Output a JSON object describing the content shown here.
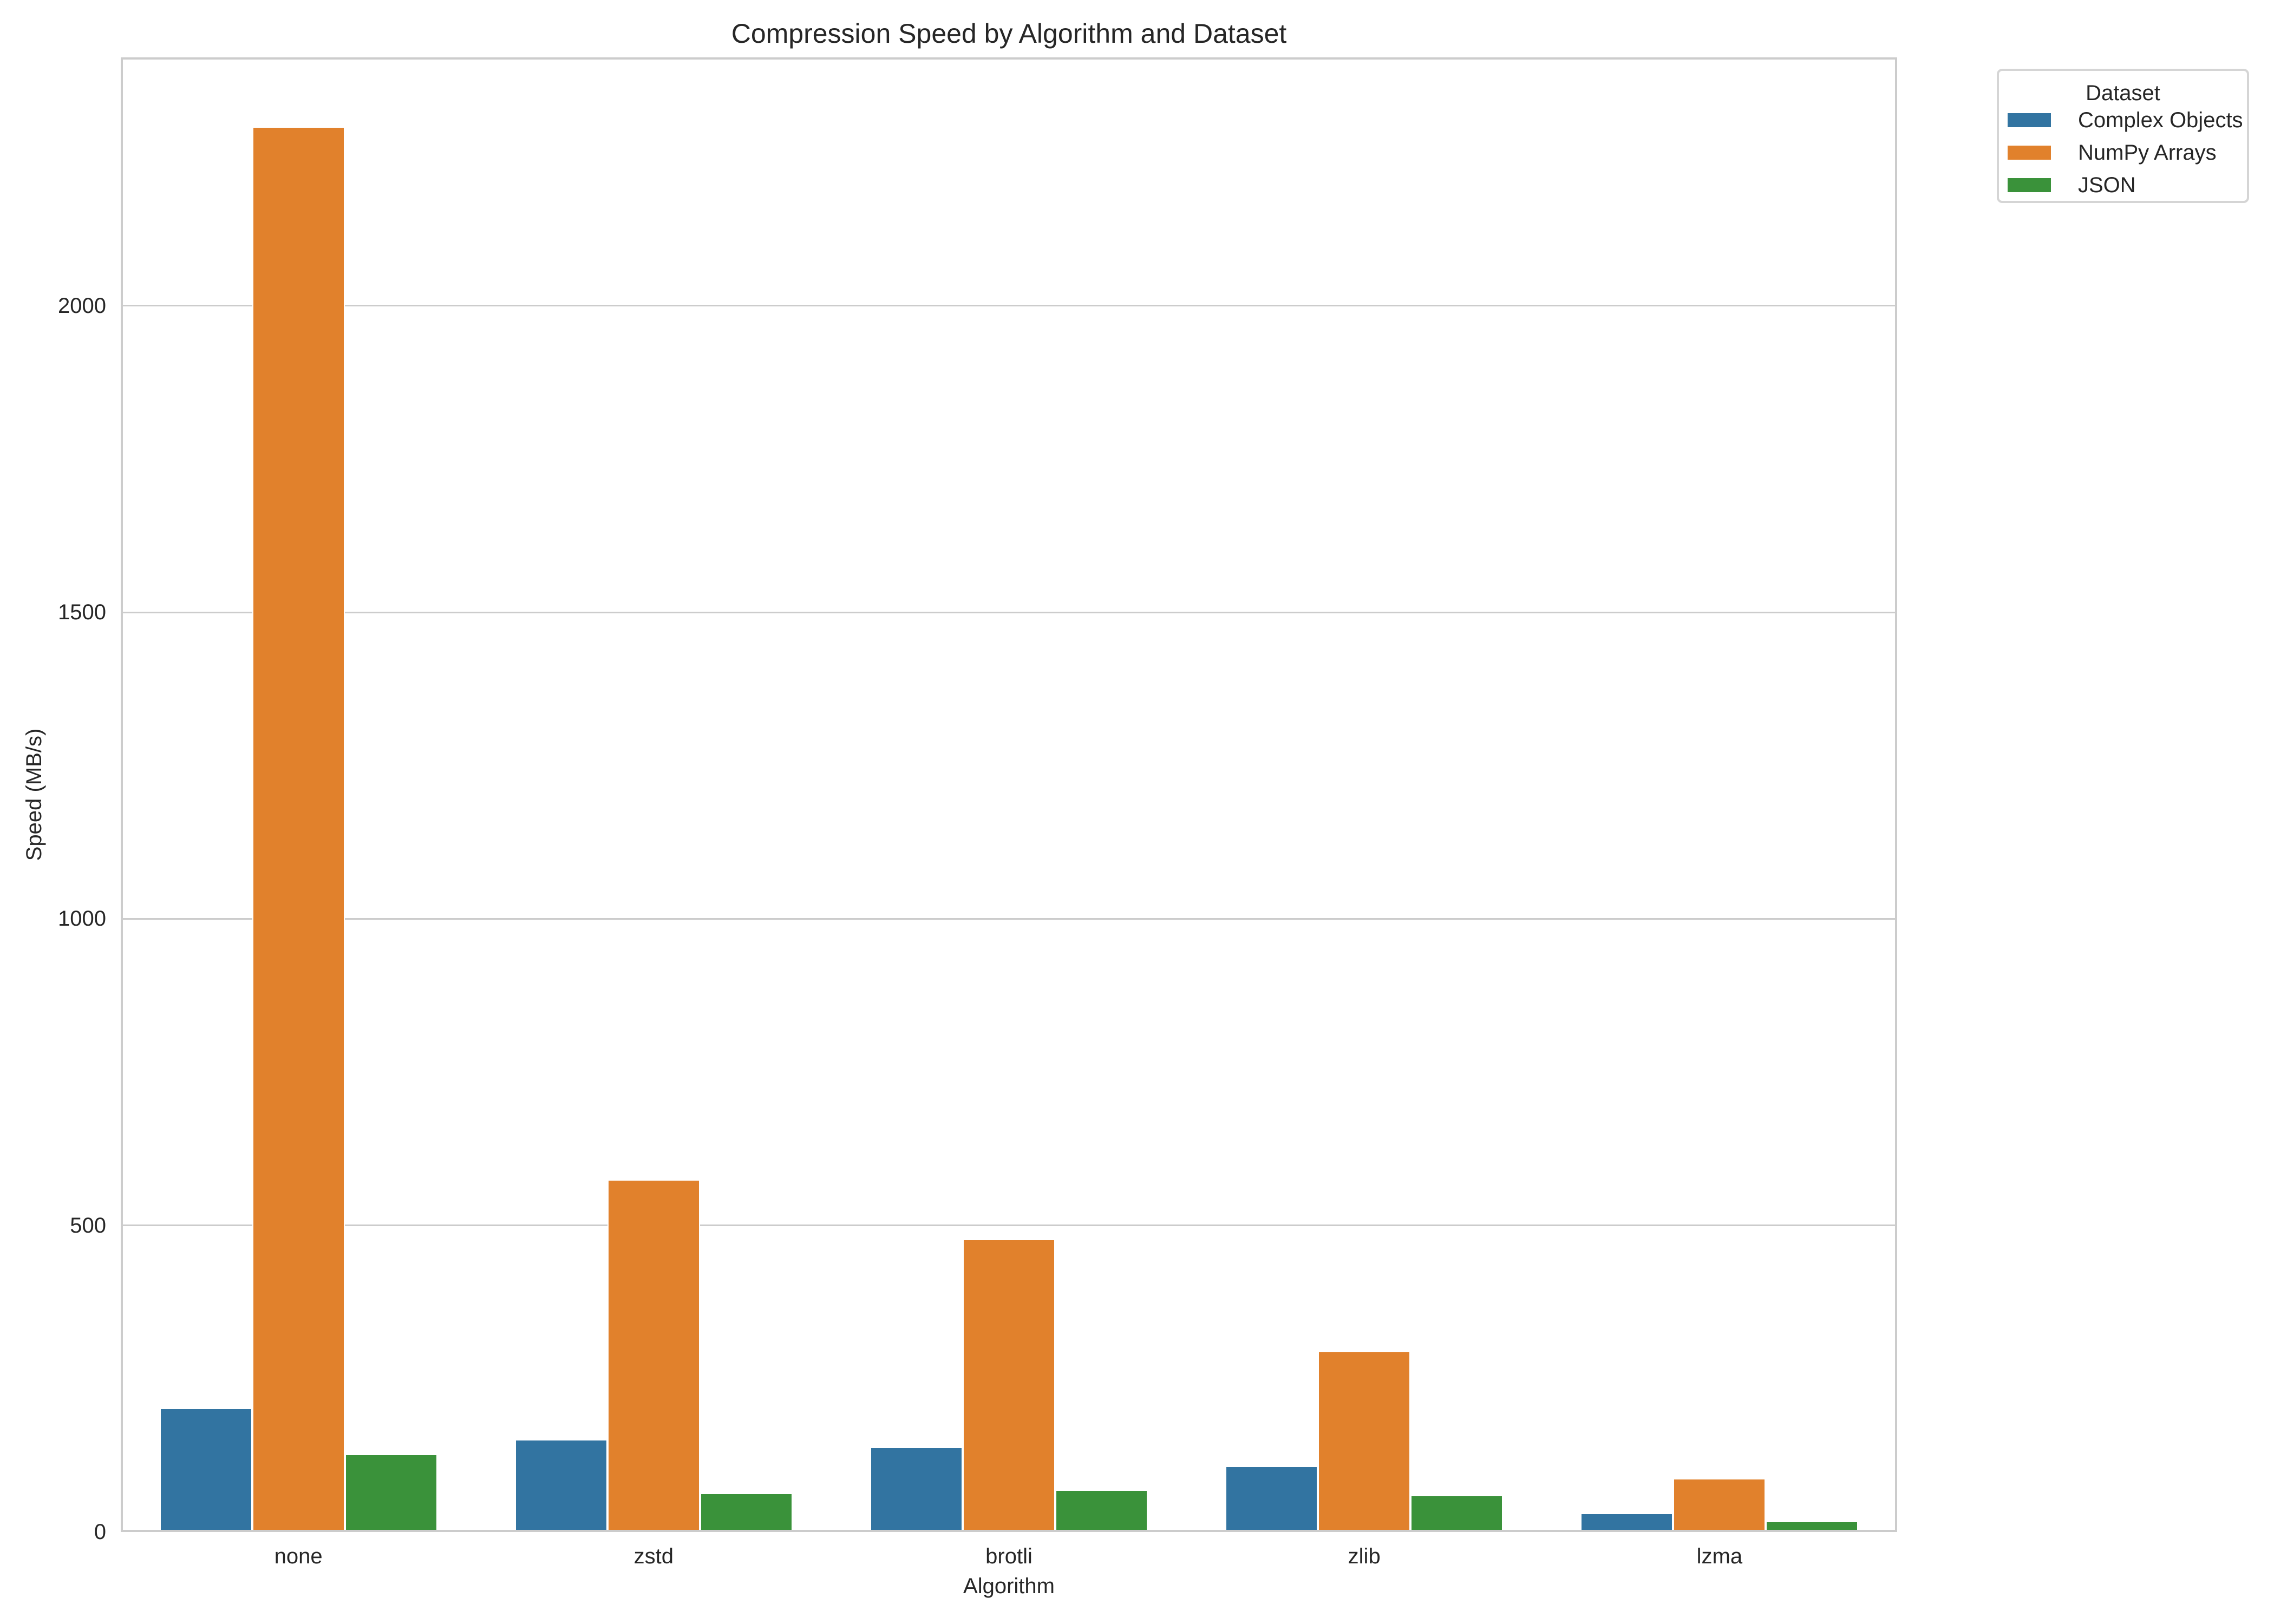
{
  "chart_data": {
    "type": "bar",
    "title": "Compression Speed by Algorithm and Dataset",
    "xlabel": "Algorithm",
    "ylabel": "Speed (MB/s)",
    "categories": [
      "none",
      "zstd",
      "brotli",
      "zlib",
      "lzma"
    ],
    "series": [
      {
        "name": "Complex Objects",
        "color": "#3274a1",
        "values": [
          200,
          149,
          137,
          106,
          29
        ]
      },
      {
        "name": "NumPy Arrays",
        "color": "#e1812c",
        "values": [
          2290,
          573,
          476,
          293,
          86
        ]
      },
      {
        "name": "JSON",
        "color": "#3a923a",
        "values": [
          125,
          62,
          67,
          58,
          16
        ]
      }
    ],
    "ylim": [
      0,
      2405
    ],
    "yticks": [
      0,
      500,
      1000,
      1500,
      2000
    ],
    "grid": {
      "y": true,
      "x": false,
      "color": "#cccccc"
    },
    "legend": {
      "title": "Dataset",
      "position": "upper right, outside plot"
    }
  },
  "title": "Compression Speed by Algorithm and Dataset",
  "axes": {
    "x_label": "Algorithm",
    "y_label": "Speed (MB/s)",
    "y_tick_labels": [
      "0",
      "500",
      "1000",
      "1500",
      "2000"
    ],
    "x_tick_labels": [
      "none",
      "zstd",
      "brotli",
      "zlib",
      "lzma"
    ]
  },
  "legend": {
    "title": "Dataset",
    "items": [
      {
        "label": "Complex Objects",
        "color": "#3274a1"
      },
      {
        "label": "NumPy Arrays",
        "color": "#e1812c"
      },
      {
        "label": "JSON",
        "color": "#3a923a"
      }
    ]
  }
}
